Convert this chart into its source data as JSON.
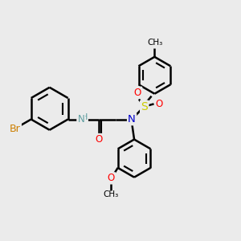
{
  "bg_color": "#ebebeb",
  "bond_color": "#000000",
  "bond_width": 1.8,
  "atom_colors": {
    "Br": "#cd7f00",
    "O": "#ff0000",
    "N_NH": "#5f9ea0",
    "N": "#0000cc",
    "S": "#cccc00",
    "C": "#000000"
  },
  "font_size": 8.5,
  "figsize": [
    3.0,
    3.0
  ],
  "dpi": 100,
  "xlim": [
    0,
    10
  ],
  "ylim": [
    0,
    10
  ]
}
